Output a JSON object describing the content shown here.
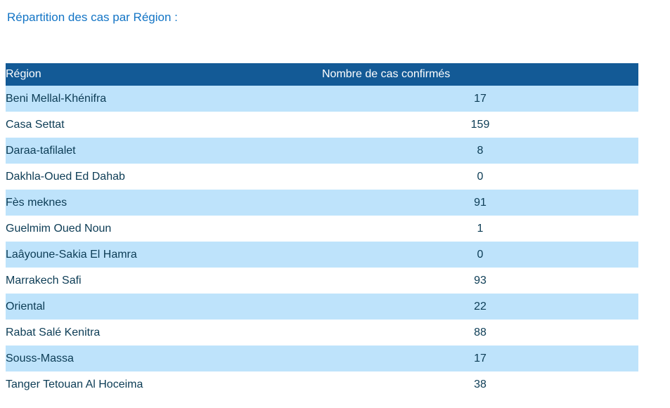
{
  "page": {
    "title": "Répartition des cas par Région :"
  },
  "colors": {
    "title_text": "#1274C5",
    "header_bg": "#135A96",
    "header_text": "#FFFFFF",
    "row_alt_bg": "#BEE3FB",
    "row_bg": "#FFFFFF",
    "row_text": "#0C3C55"
  },
  "table": {
    "columns": [
      "Région",
      "Nombre de cas confirmés"
    ],
    "rows": [
      {
        "region": "Beni Mellal-Khénifra",
        "cases": "17"
      },
      {
        "region": "Casa Settat",
        "cases": "159"
      },
      {
        "region": "Daraa-tafilalet",
        "cases": "8"
      },
      {
        "region": "Dakhla-Oued Ed Dahab",
        "cases": "0"
      },
      {
        "region": "Fès meknes",
        "cases": "91"
      },
      {
        "region": "Guelmim Oued Noun",
        "cases": "1"
      },
      {
        "region": "Laâyoune-Sakia El Hamra",
        "cases": "0"
      },
      {
        "region": "Marrakech Safi",
        "cases": "93"
      },
      {
        "region": "Oriental",
        "cases": "22"
      },
      {
        "region": "Rabat Salé Kenitra",
        "cases": "88"
      },
      {
        "region": "Souss-Massa",
        "cases": "17"
      },
      {
        "region": "Tanger Tetouan Al Hoceima",
        "cases": "38"
      }
    ]
  },
  "chart_data": {
    "type": "table",
    "title": "Répartition des cas par Région :",
    "columns": [
      "Région",
      "Nombre de cas confirmés"
    ],
    "categories": [
      "Beni Mellal-Khénifra",
      "Casa Settat",
      "Daraa-tafilalet",
      "Dakhla-Oued Ed Dahab",
      "Fès meknes",
      "Guelmim Oued Noun",
      "Laâyoune-Sakia El Hamra",
      "Marrakech Safi",
      "Oriental",
      "Rabat Salé Kenitra",
      "Souss-Massa",
      "Tanger Tetouan Al Hoceima"
    ],
    "values": [
      17,
      159,
      8,
      0,
      91,
      1,
      0,
      93,
      22,
      88,
      17,
      38
    ]
  }
}
